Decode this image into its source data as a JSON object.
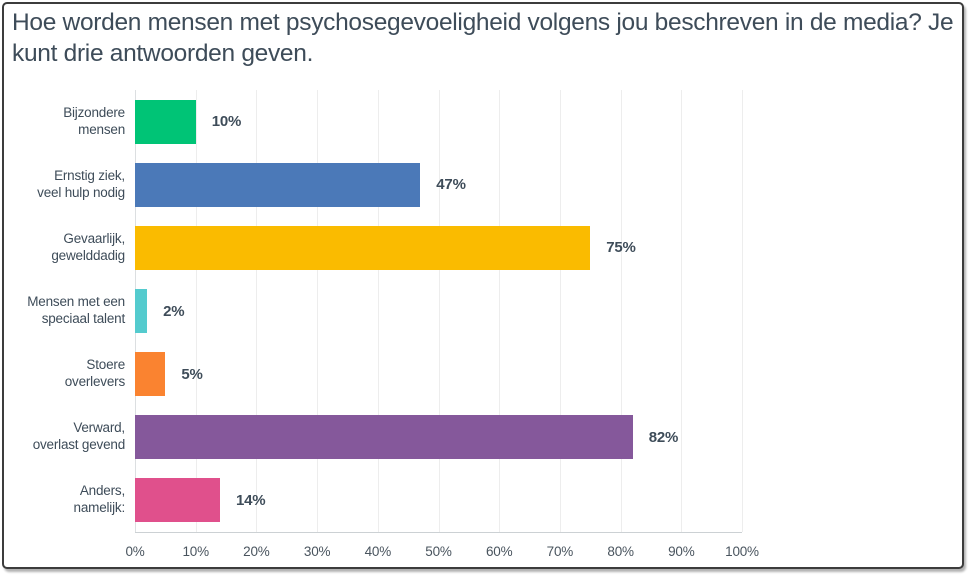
{
  "title": "Hoe worden mensen met psychosegevoeligheid volgens jou beschreven in de media? Je kunt drie antwoorden geven.",
  "colors": {
    "text": "#3E4C59",
    "tick": "#49545E",
    "grid": "#EDEDED",
    "axis": "#DCDFE1",
    "frame_border": "#3C3C3C"
  },
  "chart_data": {
    "type": "bar",
    "orientation": "horizontal",
    "title": "Hoe worden mensen met psychosegevoeligheid volgens jou beschreven in de media? Je kunt drie antwoorden geven.",
    "categories": [
      "Bijzondere mensen",
      "Ernstig ziek, veel hulp nodig",
      "Gevaarlijk, gewelddadig",
      "Mensen met een speciaal talent",
      "Stoere overlevers",
      "Verward, overlast gevend",
      "Anders, namelijk:"
    ],
    "category_lines": [
      [
        "Bijzondere",
        "mensen"
      ],
      [
        "Ernstig ziek,",
        "veel hulp nodig"
      ],
      [
        "Gevaarlijk,",
        "gewelddadig"
      ],
      [
        "Mensen met een",
        "speciaal talent"
      ],
      [
        "Stoere",
        "overlevers"
      ],
      [
        "Verward,",
        "overlast gevend"
      ],
      [
        "Anders,",
        "namelijk:"
      ]
    ],
    "values": [
      10,
      47,
      75,
      2,
      5,
      82,
      14
    ],
    "value_labels": [
      "10%",
      "47%",
      "75%",
      "2%",
      "5%",
      "82%",
      "14%"
    ],
    "bar_colors": [
      "#00C476",
      "#4B79B8",
      "#FABB00",
      "#54CBCE",
      "#FA8330",
      "#85589B",
      "#E0508C"
    ],
    "x_ticks": [
      "0%",
      "10%",
      "20%",
      "30%",
      "40%",
      "50%",
      "60%",
      "70%",
      "80%",
      "90%",
      "100%"
    ],
    "x_tick_values": [
      0,
      10,
      20,
      30,
      40,
      50,
      60,
      70,
      80,
      90,
      100
    ],
    "xlim": [
      0,
      100
    ],
    "xlabel": "",
    "ylabel": "",
    "grid": true,
    "legend": false
  }
}
